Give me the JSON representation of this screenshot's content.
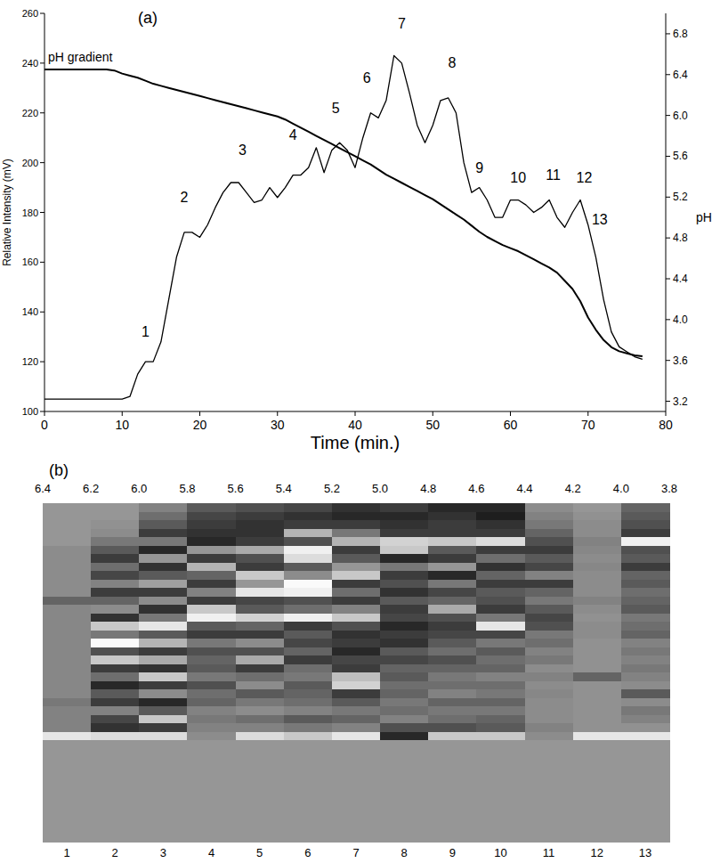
{
  "chart_data": [
    {
      "type": "line",
      "title": "(a)",
      "x_label": "Time (min.)",
      "y_label": "Relative Intensity (mV)",
      "y2_label": "pH",
      "x": [
        0,
        1,
        2,
        3,
        4,
        5,
        6,
        7,
        8,
        9,
        10,
        11,
        12,
        13,
        14,
        15,
        16,
        17,
        18,
        19,
        20,
        21,
        22,
        23,
        24,
        25,
        26,
        27,
        28,
        29,
        30,
        31,
        32,
        33,
        34,
        35,
        36,
        37,
        38,
        39,
        40,
        41,
        42,
        43,
        44,
        45,
        46,
        47,
        48,
        49,
        50,
        51,
        52,
        53,
        54,
        55,
        56,
        57,
        58,
        59,
        60,
        61,
        62,
        63,
        64,
        65,
        66,
        67,
        68,
        69,
        70,
        71,
        72,
        73,
        74,
        75,
        76,
        77
      ],
      "series": [
        {
          "color": "#000000",
          "values": [
            105,
            105,
            105,
            105,
            105,
            105,
            105,
            105,
            105,
            105,
            105,
            106,
            115,
            120,
            120,
            128,
            145,
            162,
            172,
            172,
            170,
            175,
            182,
            188,
            192,
            192,
            188,
            184,
            185,
            190,
            186,
            190,
            195,
            195,
            198,
            206,
            196,
            205,
            208,
            205,
            198,
            210,
            220,
            218,
            225,
            243,
            240,
            228,
            215,
            208,
            215,
            225,
            226,
            220,
            200,
            188,
            190,
            185,
            178,
            178,
            185,
            185,
            183,
            180,
            182,
            185,
            178,
            174,
            180,
            185,
            175,
            162,
            145,
            132,
            126,
            124,
            122,
            121
          ]
        },
        {
          "name": "pH gradient",
          "color": "#000000",
          "axis": "y2",
          "values": [
            6.45,
            6.45,
            6.45,
            6.45,
            6.45,
            6.45,
            6.45,
            6.45,
            6.45,
            6.44,
            6.41,
            6.39,
            6.37,
            6.34,
            6.31,
            6.29,
            6.27,
            6.25,
            6.23,
            6.21,
            6.19,
            6.17,
            6.15,
            6.13,
            6.11,
            6.09,
            6.07,
            6.05,
            6.03,
            6.01,
            5.99,
            5.96,
            5.92,
            5.88,
            5.84,
            5.8,
            5.76,
            5.72,
            5.68,
            5.64,
            5.6,
            5.56,
            5.52,
            5.47,
            5.42,
            5.38,
            5.34,
            5.3,
            5.26,
            5.22,
            5.18,
            5.13,
            5.08,
            5.03,
            4.98,
            4.92,
            4.86,
            4.81,
            4.77,
            4.73,
            4.7,
            4.67,
            4.63,
            4.59,
            4.55,
            4.51,
            4.46,
            4.38,
            4.3,
            4.18,
            4.02,
            3.9,
            3.8,
            3.73,
            3.69,
            3.67,
            3.65,
            3.64
          ]
        }
      ],
      "xlim": [
        0,
        80
      ],
      "xticks": [
        0,
        10,
        20,
        30,
        40,
        50,
        60,
        70,
        80
      ],
      "ylim": [
        100,
        260
      ],
      "yticks": [
        100,
        120,
        140,
        160,
        180,
        200,
        220,
        240,
        260
      ],
      "y2lim": [
        3.1,
        7.0
      ],
      "y2ticks": [
        3.2,
        3.6,
        {
          "value": 4,
          "label": "4.0"
        },
        4.4,
        4.8,
        5.2,
        5.6,
        {
          "value": 6,
          "label": "6.0"
        },
        6.4,
        6.8
      ],
      "annotations": [
        {
          "text": "1",
          "x": 13,
          "y": 130
        },
        {
          "text": "2",
          "x": 18,
          "y": 184
        },
        {
          "text": "3",
          "x": 25.5,
          "y": 203
        },
        {
          "text": "4",
          "x": 32,
          "y": 209
        },
        {
          "text": "5",
          "x": 37.5,
          "y": 220
        },
        {
          "text": "6",
          "x": 41.5,
          "y": 232
        },
        {
          "text": "7",
          "x": 46,
          "y": 254
        },
        {
          "text": "8",
          "x": 52.5,
          "y": 238
        },
        {
          "text": "9",
          "x": 56,
          "y": 196
        },
        {
          "text": "10",
          "x": 61,
          "y": 192
        },
        {
          "text": "11",
          "x": 65.5,
          "y": 193
        },
        {
          "text": "12",
          "x": 69.5,
          "y": 192
        },
        {
          "text": "13",
          "x": 71.5,
          "y": 175
        }
      ],
      "grid": false
    },
    {
      "type": "heatmap",
      "title": "(b)",
      "categories": [
        "1",
        "2",
        "3",
        "4",
        "5",
        "6",
        "7",
        "8",
        "9",
        "10",
        "11",
        "12",
        "13"
      ],
      "top_labels": [
        6.4,
        6.2,
        {
          "value": 6,
          "label": "6.0"
        },
        5.8,
        5.6,
        5.4,
        5.2,
        {
          "value": 5,
          "label": "5.0"
        },
        4.8,
        4.6,
        4.4,
        4.2,
        {
          "value": 4,
          "label": "4.0"
        },
        3.8
      ],
      "zlim": [
        0,
        255
      ],
      "cells": [
        [
          150,
          150,
          150,
          150,
          150,
          140,
          140,
          140,
          140,
          140,
          140,
          100,
          135,
          135,
          135,
          135,
          135,
          135,
          135,
          135,
          135,
          135,
          135,
          120,
          130,
          130,
          130,
          230,
          150,
          150,
          150,
          150,
          150,
          150,
          150,
          150,
          150,
          150,
          150,
          150
        ],
        [
          150,
          150,
          145,
          140,
          120,
          90,
          60,
          110,
          70,
          130,
          60,
          100,
          140,
          50,
          200,
          120,
          250,
          80,
          200,
          60,
          110,
          40,
          90,
          60,
          130,
          70,
          50,
          220,
          150,
          150,
          150,
          150,
          150,
          150,
          150,
          150,
          150,
          150,
          150,
          150
        ],
        [
          130,
          110,
          90,
          60,
          120,
          40,
          150,
          50,
          90,
          160,
          60,
          140,
          50,
          120,
          230,
          90,
          180,
          60,
          170,
          50,
          200,
          60,
          140,
          40,
          90,
          200,
          60,
          220,
          150,
          150,
          150,
          150,
          150,
          150,
          150,
          150,
          150,
          150,
          150,
          150
        ],
        [
          90,
          70,
          60,
          50,
          40,
          150,
          60,
          180,
          100,
          60,
          130,
          60,
          200,
          240,
          90,
          60,
          120,
          80,
          100,
          90,
          120,
          80,
          110,
          100,
          130,
          120,
          130,
          140,
          150,
          150,
          150,
          150,
          150,
          150,
          150,
          150,
          150,
          150,
          150,
          150
        ],
        [
          80,
          60,
          50,
          50,
          60,
          170,
          80,
          60,
          200,
          150,
          230,
          70,
          90,
          210,
          100,
          60,
          140,
          80,
          170,
          60,
          110,
          140,
          90,
          120,
          140,
          110,
          130,
          220,
          150,
          150,
          150,
          150,
          150,
          150,
          150,
          150,
          150,
          150,
          150,
          150
        ],
        [
          70,
          50,
          60,
          180,
          80,
          240,
          220,
          90,
          140,
          250,
          240,
          80,
          110,
          240,
          60,
          90,
          70,
          100,
          60,
          110,
          120,
          90,
          100,
          110,
          130,
          90,
          120,
          200,
          150,
          150,
          150,
          150,
          150,
          150,
          150,
          150,
          150,
          150,
          150,
          150
        ],
        [
          50,
          40,
          60,
          120,
          180,
          60,
          90,
          150,
          200,
          60,
          110,
          60,
          130,
          200,
          80,
          50,
          60,
          40,
          70,
          60,
          190,
          210,
          60,
          90,
          120,
          100,
          130,
          230,
          150,
          150,
          150,
          150,
          150,
          150,
          150,
          150,
          150,
          150,
          150,
          150
        ],
        [
          60,
          40,
          50,
          60,
          210,
          200,
          40,
          120,
          60,
          80,
          50,
          90,
          60,
          70,
          40,
          60,
          50,
          90,
          70,
          100,
          90,
          110,
          100,
          120,
          110,
          130,
          80,
          40,
          150,
          150,
          150,
          150,
          150,
          150,
          150,
          150,
          150,
          150,
          150,
          150
        ],
        [
          40,
          50,
          60,
          60,
          200,
          90,
          60,
          150,
          40,
          120,
          70,
          100,
          170,
          80,
          60,
          70,
          90,
          110,
          80,
          100,
          120,
          110,
          130,
          100,
          120,
          110,
          80,
          200,
          150,
          150,
          150,
          150,
          150,
          150,
          150,
          150,
          150,
          150,
          150,
          150
        ],
        [
          40,
          30,
          50,
          60,
          220,
          60,
          110,
          50,
          100,
          60,
          90,
          80,
          60,
          120,
          230,
          70,
          120,
          90,
          110,
          100,
          130,
          110,
          120,
          100,
          120,
          100,
          90,
          200,
          150,
          150,
          150,
          150,
          150,
          150,
          150,
          150,
          150,
          150,
          150,
          150
        ],
        [
          140,
          130,
          120,
          100,
          80,
          60,
          90,
          70,
          130,
          60,
          100,
          120,
          90,
          70,
          80,
          120,
          110,
          130,
          120,
          140,
          130,
          140,
          135,
          140,
          140,
          140,
          130,
          140,
          150,
          150,
          150,
          150,
          150,
          150,
          150,
          150,
          150,
          150,
          150,
          150
        ],
        [
          150,
          145,
          140,
          140,
          130,
          135,
          140,
          135,
          140,
          140,
          140,
          130,
          140,
          145,
          140,
          140,
          145,
          145,
          145,
          145,
          100,
          145,
          145,
          145,
          145,
          145,
          145,
          230,
          150,
          150,
          150,
          150,
          150,
          150,
          150,
          150,
          150,
          150,
          150,
          150
        ],
        [
          100,
          90,
          80,
          60,
          240,
          80,
          90,
          60,
          100,
          90,
          110,
          100,
          90,
          120,
          110,
          100,
          130,
          120,
          130,
          120,
          130,
          140,
          90,
          140,
          120,
          130,
          145,
          230,
          150,
          150,
          150,
          150,
          150,
          150,
          150,
          150,
          150,
          150,
          150,
          150
        ]
      ]
    }
  ]
}
